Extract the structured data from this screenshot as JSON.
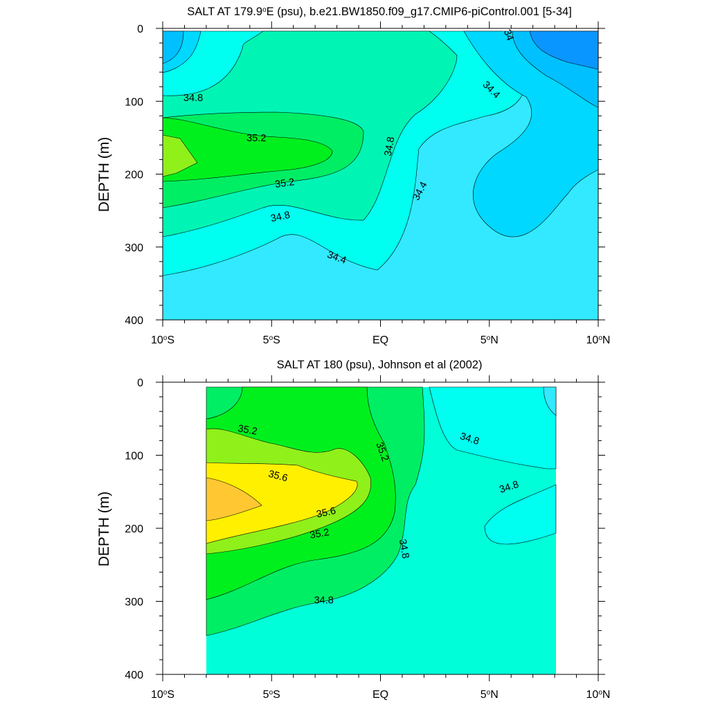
{
  "chart_data": [
    {
      "type": "contour",
      "title": "SALT AT 179.9",
      "title_sup": "o",
      "title_rest": "E (psu), b.e21.BW1850.f09_g17.CMIP6-piControl.001 [5-34]",
      "ylabel": "DEPTH (m)",
      "xlabel": "",
      "xlim": [
        -10,
        10
      ],
      "ylim": [
        400,
        0
      ],
      "y_reversed": true,
      "x_ticks": [
        {
          "value": -10,
          "num": "10",
          "deg": "o",
          "hem": "S"
        },
        {
          "value": -5,
          "num": "5",
          "deg": "o",
          "hem": "S"
        },
        {
          "value": 0,
          "num": "EQ",
          "deg": "",
          "hem": ""
        },
        {
          "value": 5,
          "num": "5",
          "deg": "o",
          "hem": "N"
        },
        {
          "value": 10,
          "num": "10",
          "deg": "o",
          "hem": "N"
        }
      ],
      "y_ticks": [
        0,
        100,
        200,
        300,
        400
      ],
      "contour_interval": 0.2,
      "data_extent": {
        "x": [
          -10,
          10
        ],
        "y": [
          5,
          400
        ]
      },
      "fill_levels": [
        {
          "range": [
            33.8,
            34.0
          ],
          "color": "#0a96ff"
        },
        {
          "range": [
            34.0,
            34.2
          ],
          "color": "#00c0ff"
        },
        {
          "range": [
            34.2,
            34.4
          ],
          "color": "#00d8ff"
        },
        {
          "range": [
            34.4,
            34.6
          ],
          "color": "#32e9ff"
        },
        {
          "range": [
            34.6,
            34.8
          ],
          "color": "#00fff0"
        },
        {
          "range": [
            34.8,
            35.0
          ],
          "color": "#00f5b4"
        },
        {
          "range": [
            35.0,
            35.2
          ],
          "color": "#00ee64"
        },
        {
          "range": [
            35.2,
            35.4
          ],
          "color": "#00f01e"
        },
        {
          "range": [
            35.4,
            35.6
          ],
          "color": "#90f01a"
        }
      ],
      "contour_labels": [
        {
          "text": "34.8",
          "x": -8.6,
          "y": 95,
          "angle": 0
        },
        {
          "text": "35.2",
          "x": -5.7,
          "y": 150,
          "angle": 0
        },
        {
          "text": "35.2",
          "x": -4.4,
          "y": 212,
          "angle": -8
        },
        {
          "text": "34.8",
          "x": -4.6,
          "y": 258,
          "angle": -12
        },
        {
          "text": "34.8",
          "x": 0.4,
          "y": 162,
          "angle": -80
        },
        {
          "text": "34.4",
          "x": -2.0,
          "y": 314,
          "angle": 20
        },
        {
          "text": "34.4",
          "x": 1.8,
          "y": 223,
          "angle": -62
        },
        {
          "text": "34.4",
          "x": 5.1,
          "y": 84,
          "angle": 45
        },
        {
          "text": "34",
          "x": 5.9,
          "y": 9,
          "angle": 70
        }
      ]
    },
    {
      "type": "contour",
      "title": "SALT AT 180 (psu), Johnson et al (2002)",
      "title_sup": "",
      "title_rest": "",
      "ylabel": "DEPTH (m)",
      "xlabel": "",
      "xlim": [
        -10,
        10
      ],
      "ylim": [
        400,
        0
      ],
      "y_reversed": true,
      "x_ticks": [
        {
          "value": -10,
          "num": "10",
          "deg": "o",
          "hem": "S"
        },
        {
          "value": -5,
          "num": "5",
          "deg": "o",
          "hem": "S"
        },
        {
          "value": 0,
          "num": "EQ",
          "deg": "",
          "hem": ""
        },
        {
          "value": 5,
          "num": "5",
          "deg": "o",
          "hem": "N"
        },
        {
          "value": 10,
          "num": "10",
          "deg": "o",
          "hem": "N"
        }
      ],
      "y_ticks": [
        0,
        100,
        200,
        300,
        400
      ],
      "contour_interval": 0.2,
      "data_extent": {
        "x": [
          -8,
          8
        ],
        "y": [
          5,
          400
        ]
      },
      "fill_levels": [
        {
          "range": [
            34.4,
            34.6
          ],
          "color": "#32e9ff"
        },
        {
          "range": [
            34.6,
            34.8
          ],
          "color": "#00fff0"
        },
        {
          "range": [
            34.8,
            35.0
          ],
          "color": "#00ffd8"
        },
        {
          "range": [
            35.0,
            35.2
          ],
          "color": "#00ee64"
        },
        {
          "range": [
            35.2,
            35.4
          ],
          "color": "#00f01e"
        },
        {
          "range": [
            35.4,
            35.6
          ],
          "color": "#90f01a"
        },
        {
          "range": [
            35.6,
            35.8
          ],
          "color": "#fff000"
        },
        {
          "range": [
            35.8,
            36.0
          ],
          "color": "#ffc832"
        }
      ],
      "contour_labels": [
        {
          "text": "35.2",
          "x": -6.1,
          "y": 65,
          "angle": 10
        },
        {
          "text": "35.6",
          "x": -4.7,
          "y": 128,
          "angle": 15
        },
        {
          "text": "35.6",
          "x": -2.5,
          "y": 178,
          "angle": -12
        },
        {
          "text": "35.2",
          "x": -2.8,
          "y": 207,
          "angle": -10
        },
        {
          "text": "35.2",
          "x": 0.1,
          "y": 95,
          "angle": 70
        },
        {
          "text": "34.8",
          "x": 1.1,
          "y": 228,
          "angle": 80
        },
        {
          "text": "34.8",
          "x": -2.6,
          "y": 298,
          "angle": 0
        },
        {
          "text": "34.8",
          "x": 4.1,
          "y": 77,
          "angle": 18
        },
        {
          "text": "34.8",
          "x": 5.9,
          "y": 143,
          "angle": -18
        }
      ]
    }
  ]
}
